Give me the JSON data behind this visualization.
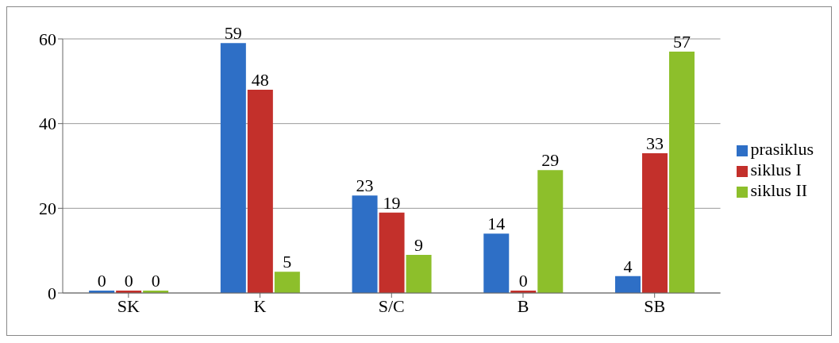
{
  "chart_data": {
    "type": "bar",
    "categories": [
      "SK",
      "K",
      "S/C",
      "B",
      "SB"
    ],
    "series": [
      {
        "name": "prasiklus",
        "color": "#2e6fc6",
        "values": [
          0,
          59,
          23,
          14,
          4
        ]
      },
      {
        "name": "siklus I",
        "color": "#c3302b",
        "values": [
          0,
          48,
          19,
          0,
          33
        ]
      },
      {
        "name": "siklus II",
        "color": "#8dbf2b",
        "values": [
          0,
          5,
          9,
          29,
          57
        ]
      }
    ],
    "ylim": [
      0,
      60
    ],
    "yticks": [
      0,
      20,
      40,
      60
    ],
    "grid": "y",
    "legend": "right",
    "data_labels": true
  }
}
